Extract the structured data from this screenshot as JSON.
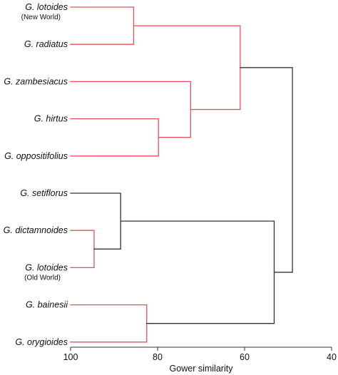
{
  "colors": {
    "highlight": "#e0525d",
    "default": "#333333",
    "axis": "#333333"
  },
  "taxa": [
    {
      "name": "G. lotoides",
      "note": "(New World)"
    },
    {
      "name": "G. radiatus",
      "note": ""
    },
    {
      "name": "G. zambesiacus",
      "note": ""
    },
    {
      "name": "G. hirtus",
      "note": ""
    },
    {
      "name": "G. oppositifolius",
      "note": ""
    },
    {
      "name": "G. setiflorus",
      "note": ""
    },
    {
      "name": "G. dictamnoides",
      "note": ""
    },
    {
      "name": "G. lotoides",
      "note": "(Old World)"
    },
    {
      "name": "G. bainesii",
      "note": ""
    },
    {
      "name": "G. orygioides",
      "note": ""
    }
  ],
  "merges": [
    {
      "id": "c1",
      "children": [
        "t0",
        "t1"
      ],
      "similarity": 85.5,
      "color": "highlight"
    },
    {
      "id": "c2",
      "children": [
        "t3",
        "t4"
      ],
      "similarity": 79.8,
      "color": "highlight"
    },
    {
      "id": "c3",
      "children": [
        "t2",
        "c2"
      ],
      "similarity": 72.4,
      "color": "highlight"
    },
    {
      "id": "c4",
      "children": [
        "c1",
        "c3"
      ],
      "similarity": 61.0,
      "color": "highlight"
    },
    {
      "id": "c5",
      "children": [
        "t6",
        "t7"
      ],
      "similarity": 94.6,
      "color": "highlight"
    },
    {
      "id": "c6",
      "children": [
        "t5",
        "c5"
      ],
      "similarity": 88.5,
      "color": "default"
    },
    {
      "id": "c7",
      "children": [
        "t8",
        "t9"
      ],
      "similarity": 82.5,
      "color": "highlight"
    },
    {
      "id": "c8",
      "children": [
        "c6",
        "c7"
      ],
      "similarity": 53.2,
      "color": "default"
    },
    {
      "id": "c9",
      "children": [
        "c4",
        "c8"
      ],
      "similarity": 49.0,
      "color": "default"
    }
  ],
  "axis": {
    "title": "Gower similarity",
    "min": 100,
    "max": 40,
    "ticks": [
      100,
      80,
      60,
      40
    ]
  }
}
